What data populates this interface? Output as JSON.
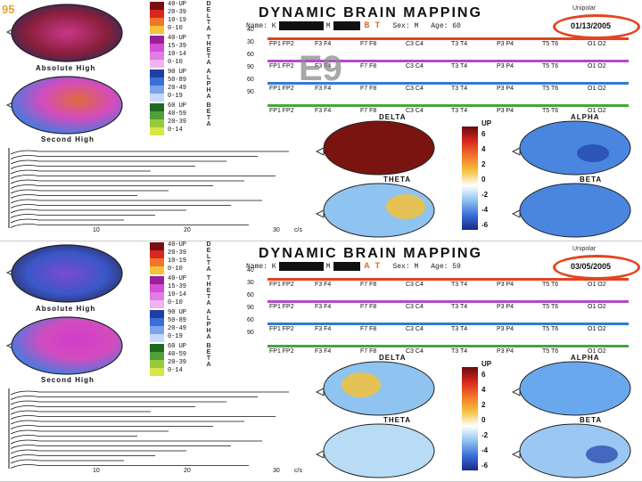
{
  "slide_label": "95",
  "watermark": "E9",
  "colors": {
    "delta": "#e2451f",
    "theta": "#b44ac8",
    "alpha": "#2f7bd6",
    "beta": "#48a43a",
    "ring": "#e2451f"
  },
  "panels": [
    {
      "title": "DYNAMIC  BRAIN  MAPPING",
      "name_label": "Name: K",
      "middle_label": "M",
      "initials": "B T",
      "sex": "Sex: M",
      "age": "Age: 60",
      "date": "01/13/2005",
      "unipolar": "Unipolar",
      "abs_label": "Absolute High",
      "second_label": "Second High",
      "map_labels": [
        "DELTA",
        "ALPHA",
        "THETA",
        "BETA"
      ],
      "scale_title": "UP",
      "scale_ticks": [
        "6",
        "4",
        "2",
        "0",
        "-2",
        "-4",
        "-6"
      ],
      "freq_unit": "c/s",
      "electrodes": [
        "FP1 FP2",
        "F3 F4",
        "F7 F8",
        "C3 C4",
        "T3 T4",
        "P3 P4",
        "T5 T6",
        "O1 O2"
      ]
    },
    {
      "title": "DYNAMIC  BRAIN  MAPPING",
      "name_label": "Name: K",
      "middle_label": "M",
      "initials": "A T",
      "sex": "Sex: M",
      "age": "Age: 59",
      "date": "03/05/2005",
      "unipolar": "Unipolar",
      "abs_label": "Absolute High",
      "second_label": "Second High",
      "map_labels": [
        "DELTA",
        "ALPHA",
        "THETA",
        "BETA"
      ],
      "scale_title": "UP",
      "scale_ticks": [
        "6",
        "4",
        "2",
        "0",
        "-2",
        "-4",
        "-6"
      ],
      "freq_unit": "c/s",
      "electrodes": [
        "FP1 FP2",
        "F3 F4",
        "F7 F8",
        "C3 C4",
        "T3 T4",
        "P3 P4",
        "T5 T6",
        "O1 O2"
      ]
    }
  ],
  "band_letters": {
    "delta": "DELTA",
    "theta": "THETA",
    "alpha": "ALPHA",
    "beta": "BETA"
  },
  "scale_rows": {
    "delta": [
      "40-UP",
      "20-39",
      "10-19",
      "0-10"
    ],
    "theta": [
      "40-UP",
      "15-39",
      "10-14",
      "0-10"
    ],
    "alpha": [
      "90 UP",
      "50-89",
      "20-49",
      "0-19"
    ],
    "beta": [
      "60 UP",
      "40-59",
      "20-39",
      "0-14"
    ]
  },
  "axis_ticks": [
    "40",
    "30",
    "60",
    "90",
    "60",
    "90"
  ],
  "freq_ticks": [
    "10",
    "20",
    "30"
  ]
}
